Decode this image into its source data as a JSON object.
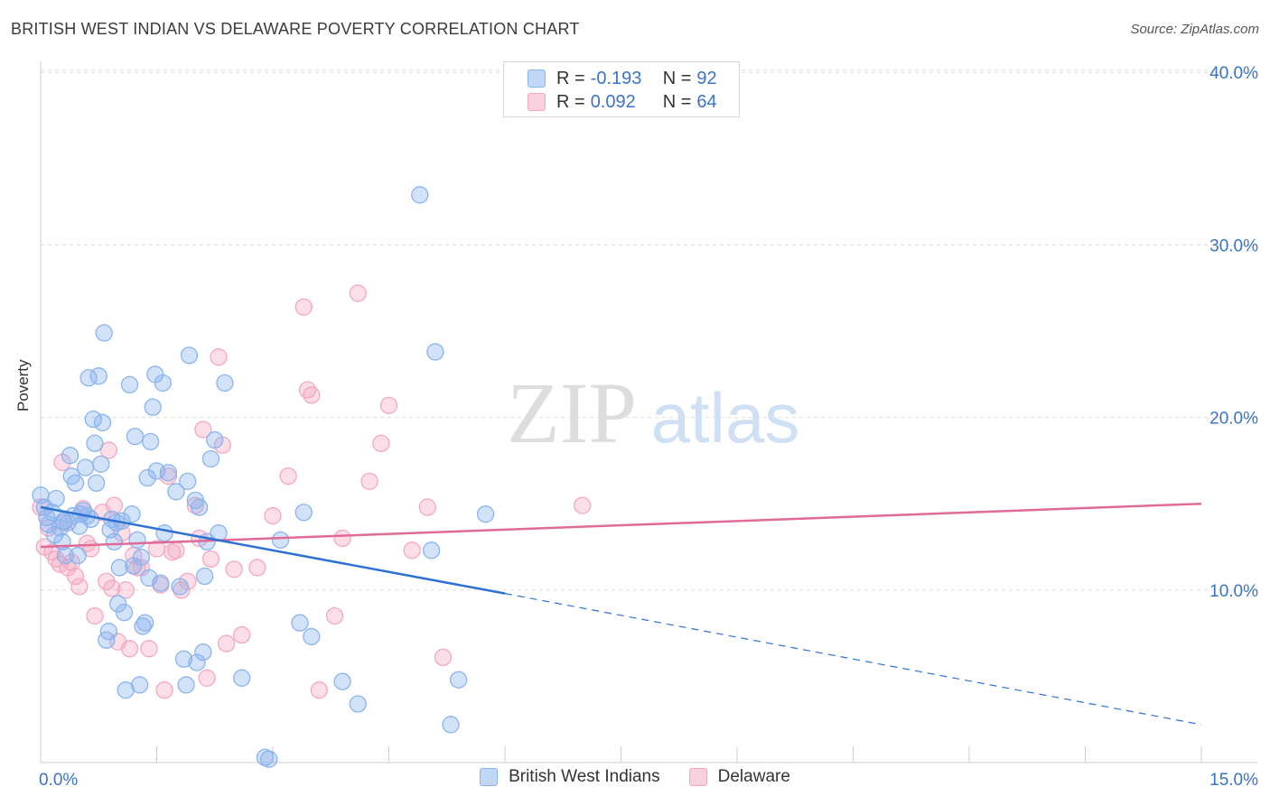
{
  "title": "BRITISH WEST INDIAN VS DELAWARE POVERTY CORRELATION CHART",
  "source": "Source: ZipAtlas.com",
  "watermark": {
    "zip": "ZIP",
    "atlas": "atlas"
  },
  "legend_top": {
    "r_label": "R =",
    "n_label": "N =",
    "rows": [
      {
        "r": "-0.193",
        "n": "92",
        "color": "#8ab4ee"
      },
      {
        "r": "0.092",
        "n": "64",
        "color": "#f4a7c0"
      }
    ]
  },
  "chart_data": {
    "type": "scatter",
    "title": "BRITISH WEST INDIAN VS DELAWARE POVERTY CORRELATION CHART",
    "xlabel": "",
    "ylabel": "Poverty",
    "xlim": [
      0,
      15
    ],
    "ylim": [
      0,
      40
    ],
    "x_tick_labels": [
      "0.0%",
      "15.0%"
    ],
    "y_ticks": [
      10,
      20,
      30,
      40
    ],
    "y_tick_labels": [
      "10.0%",
      "20.0%",
      "30.0%",
      "40.0%"
    ],
    "grid": true,
    "legend_position": "bottom",
    "series": [
      {
        "name": "British West Indians",
        "color": "#8ab4ee",
        "line_color": "#2c72d4",
        "r": -0.193,
        "n": 92,
        "trend": {
          "x0": 0,
          "y0": 14.8,
          "x1": 6.0,
          "y1": 9.8,
          "dashed_to_x": 15.0,
          "dashed_to_y": 2.2
        },
        "points": [
          [
            0.0,
            15.5
          ],
          [
            0.05,
            14.8
          ],
          [
            0.08,
            14.2
          ],
          [
            0.1,
            13.8
          ],
          [
            0.15,
            14.5
          ],
          [
            0.18,
            13.2
          ],
          [
            0.2,
            15.3
          ],
          [
            0.25,
            13.6
          ],
          [
            0.28,
            12.8
          ],
          [
            0.3,
            14.0
          ],
          [
            0.32,
            12.0
          ],
          [
            0.35,
            13.9
          ],
          [
            0.38,
            17.8
          ],
          [
            0.4,
            16.6
          ],
          [
            0.42,
            14.3
          ],
          [
            0.45,
            16.2
          ],
          [
            0.48,
            12.0
          ],
          [
            0.5,
            13.7
          ],
          [
            0.52,
            14.4
          ],
          [
            0.55,
            14.6
          ],
          [
            0.58,
            17.1
          ],
          [
            0.6,
            14.3
          ],
          [
            0.62,
            22.3
          ],
          [
            0.65,
            14.1
          ],
          [
            0.68,
            19.9
          ],
          [
            0.7,
            18.5
          ],
          [
            0.72,
            16.2
          ],
          [
            0.75,
            22.4
          ],
          [
            0.78,
            17.3
          ],
          [
            0.8,
            19.7
          ],
          [
            0.82,
            24.9
          ],
          [
            0.85,
            7.1
          ],
          [
            0.88,
            7.6
          ],
          [
            0.9,
            13.5
          ],
          [
            0.92,
            14.1
          ],
          [
            0.95,
            12.8
          ],
          [
            0.98,
            13.9
          ],
          [
            1.0,
            9.2
          ],
          [
            1.02,
            11.3
          ],
          [
            1.05,
            14.0
          ],
          [
            1.08,
            8.7
          ],
          [
            1.1,
            4.2
          ],
          [
            1.15,
            21.9
          ],
          [
            1.18,
            14.4
          ],
          [
            1.2,
            11.4
          ],
          [
            1.22,
            18.9
          ],
          [
            1.25,
            12.9
          ],
          [
            1.28,
            4.5
          ],
          [
            1.3,
            11.9
          ],
          [
            1.32,
            7.9
          ],
          [
            1.35,
            8.1
          ],
          [
            1.38,
            16.5
          ],
          [
            1.4,
            10.7
          ],
          [
            1.42,
            18.6
          ],
          [
            1.45,
            20.6
          ],
          [
            1.48,
            22.5
          ],
          [
            1.5,
            16.9
          ],
          [
            1.55,
            10.4
          ],
          [
            1.58,
            22.0
          ],
          [
            1.6,
            13.3
          ],
          [
            1.65,
            16.8
          ],
          [
            1.75,
            15.7
          ],
          [
            1.8,
            10.2
          ],
          [
            1.85,
            6.0
          ],
          [
            1.88,
            4.5
          ],
          [
            1.9,
            16.3
          ],
          [
            1.92,
            23.6
          ],
          [
            2.0,
            15.2
          ],
          [
            2.02,
            5.8
          ],
          [
            2.05,
            14.8
          ],
          [
            2.1,
            6.4
          ],
          [
            2.12,
            10.8
          ],
          [
            2.15,
            12.8
          ],
          [
            2.2,
            17.6
          ],
          [
            2.25,
            18.7
          ],
          [
            2.3,
            13.3
          ],
          [
            2.38,
            22.0
          ],
          [
            2.6,
            4.9
          ],
          [
            2.9,
            0.3
          ],
          [
            2.95,
            0.2
          ],
          [
            3.1,
            12.9
          ],
          [
            3.35,
            8.1
          ],
          [
            3.4,
            14.5
          ],
          [
            3.5,
            7.3
          ],
          [
            3.9,
            4.7
          ],
          [
            4.1,
            3.4
          ],
          [
            4.9,
            32.9
          ],
          [
            5.05,
            12.3
          ],
          [
            5.1,
            23.8
          ],
          [
            5.3,
            2.2
          ],
          [
            5.4,
            4.8
          ],
          [
            5.75,
            14.4
          ]
        ]
      },
      {
        "name": "Delaware",
        "color": "#f4a7c0",
        "line_color": "#e06a98",
        "r": 0.092,
        "n": 64,
        "trend": {
          "x0": 0,
          "y0": 12.5,
          "x1": 15.0,
          "y1": 15.0
        },
        "points": [
          [
            0.0,
            14.8
          ],
          [
            0.05,
            12.5
          ],
          [
            0.1,
            13.6
          ],
          [
            0.15,
            12.2
          ],
          [
            0.2,
            11.8
          ],
          [
            0.25,
            11.5
          ],
          [
            0.28,
            17.4
          ],
          [
            0.3,
            13.9
          ],
          [
            0.35,
            11.3
          ],
          [
            0.4,
            11.6
          ],
          [
            0.45,
            10.8
          ],
          [
            0.5,
            10.2
          ],
          [
            0.55,
            14.7
          ],
          [
            0.6,
            12.7
          ],
          [
            0.65,
            12.4
          ],
          [
            0.7,
            8.5
          ],
          [
            0.8,
            14.5
          ],
          [
            0.85,
            10.5
          ],
          [
            0.88,
            18.1
          ],
          [
            0.92,
            10.1
          ],
          [
            0.95,
            14.9
          ],
          [
            1.0,
            7.0
          ],
          [
            1.05,
            13.3
          ],
          [
            1.1,
            10.0
          ],
          [
            1.15,
            6.6
          ],
          [
            1.2,
            12.0
          ],
          [
            1.25,
            11.3
          ],
          [
            1.3,
            11.3
          ],
          [
            1.4,
            6.6
          ],
          [
            1.5,
            12.4
          ],
          [
            1.55,
            10.3
          ],
          [
            1.6,
            4.2
          ],
          [
            1.65,
            16.6
          ],
          [
            1.7,
            12.2
          ],
          [
            1.75,
            12.3
          ],
          [
            1.82,
            10.0
          ],
          [
            1.9,
            10.5
          ],
          [
            2.0,
            14.9
          ],
          [
            2.05,
            13.0
          ],
          [
            2.1,
            19.3
          ],
          [
            2.15,
            4.9
          ],
          [
            2.2,
            11.8
          ],
          [
            2.3,
            23.5
          ],
          [
            2.35,
            18.4
          ],
          [
            2.4,
            6.9
          ],
          [
            2.5,
            11.2
          ],
          [
            2.6,
            7.4
          ],
          [
            2.8,
            11.3
          ],
          [
            3.0,
            14.3
          ],
          [
            3.2,
            16.6
          ],
          [
            3.4,
            26.4
          ],
          [
            3.45,
            21.6
          ],
          [
            3.5,
            21.3
          ],
          [
            3.6,
            4.2
          ],
          [
            3.8,
            8.5
          ],
          [
            3.9,
            13.0
          ],
          [
            4.1,
            27.2
          ],
          [
            4.25,
            16.3
          ],
          [
            4.4,
            18.5
          ],
          [
            4.5,
            20.7
          ],
          [
            4.8,
            12.3
          ],
          [
            5.0,
            14.8
          ],
          [
            5.2,
            6.1
          ],
          [
            7.0,
            14.9
          ]
        ]
      }
    ]
  }
}
